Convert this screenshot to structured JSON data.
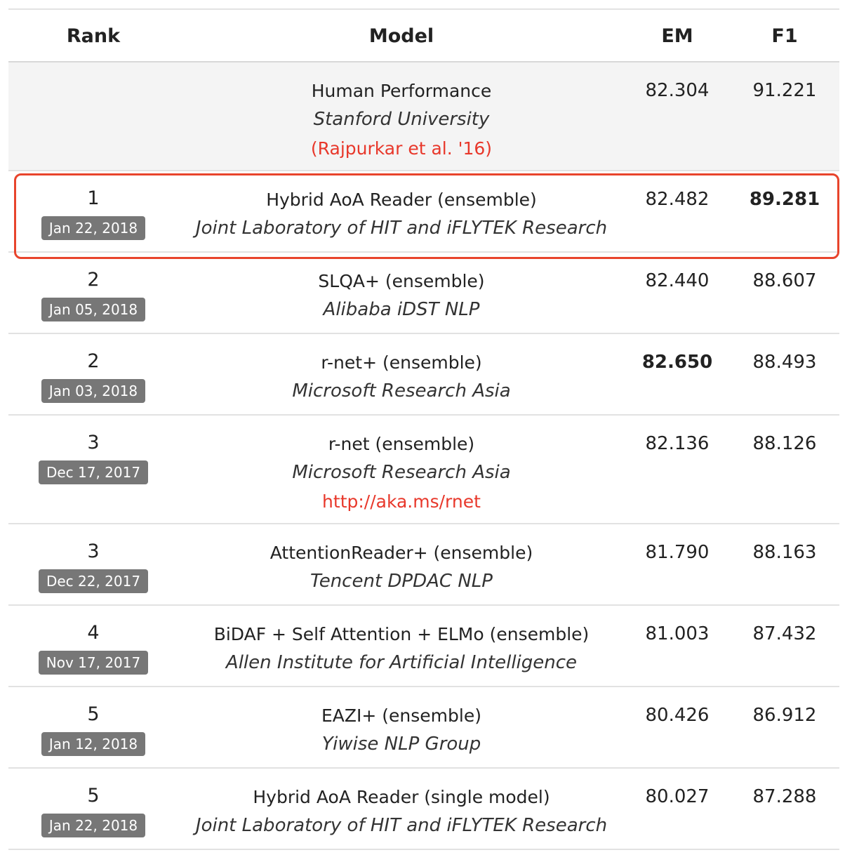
{
  "columns": {
    "rank": "Rank",
    "model": "Model",
    "em": "EM",
    "f1": "F1"
  },
  "human": {
    "name": "Human Performance",
    "org": "Stanford University",
    "link": "(Rajpurkar et al. '16)",
    "em": "82.304",
    "f1": "91.221"
  },
  "rows": [
    {
      "rank": "1",
      "date": "Jan 22, 2018",
      "name": "Hybrid AoA Reader (ensemble)",
      "org": "Joint Laboratory of HIT and iFLYTEK Research",
      "link": "",
      "em": "82.482",
      "f1": "89.281"
    },
    {
      "rank": "2",
      "date": "Jan 05, 2018",
      "name": "SLQA+ (ensemble)",
      "org": "Alibaba iDST NLP",
      "link": "",
      "em": "82.440",
      "f1": "88.607"
    },
    {
      "rank": "2",
      "date": "Jan 03, 2018",
      "name": "r-net+ (ensemble)",
      "org": "Microsoft Research Asia",
      "link": "",
      "em": "82.650",
      "f1": "88.493"
    },
    {
      "rank": "3",
      "date": "Dec 17, 2017",
      "name": "r-net (ensemble)",
      "org": "Microsoft Research Asia",
      "link": "http://aka.ms/rnet",
      "em": "82.136",
      "f1": "88.126"
    },
    {
      "rank": "3",
      "date": "Dec 22, 2017",
      "name": "AttentionReader+ (ensemble)",
      "org": "Tencent DPDAC NLP",
      "link": "",
      "em": "81.790",
      "f1": "88.163"
    },
    {
      "rank": "4",
      "date": "Nov 17, 2017",
      "name": "BiDAF + Self Attention + ELMo (ensemble)",
      "org": "Allen Institute for Artificial Intelligence",
      "link": "",
      "em": "81.003",
      "f1": "87.432"
    },
    {
      "rank": "5",
      "date": "Jan 12, 2018",
      "name": "EAZI+ (ensemble)",
      "org": "Yiwise NLP Group",
      "link": "",
      "em": "80.426",
      "f1": "86.912"
    },
    {
      "rank": "5",
      "date": "Jan 22, 2018",
      "name": "Hybrid AoA Reader (single model)",
      "org": "Joint Laboratory of HIT and iFLYTEK Research",
      "link": "",
      "em": "80.027",
      "f1": "87.288"
    }
  ],
  "best": {
    "em_row": 2,
    "f1_row": 0
  },
  "highlighted_row": 0,
  "colors": {
    "link": "#e8382b",
    "badge": "#777777",
    "highlight_border": "#e8442c",
    "human_bg": "#f4f4f4"
  }
}
